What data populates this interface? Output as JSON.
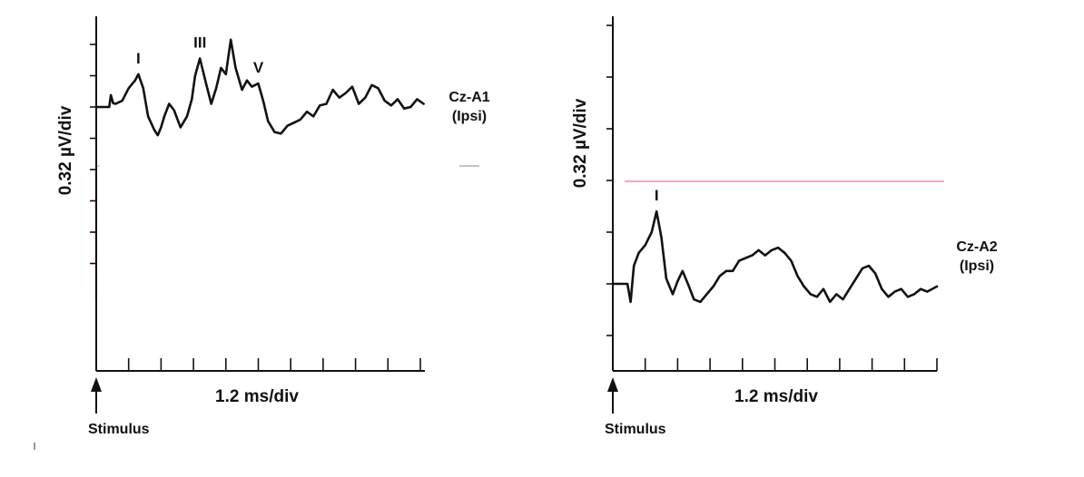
{
  "chart_data": [
    {
      "type": "line",
      "title": "",
      "xlabel": "1.2 ms/div",
      "ylabel": "0.32 µV/div",
      "stimulus_label": "Stimulus",
      "channel_label": "Cz-A1",
      "channel_sublabel": "(Ipsi)",
      "x_unit": "div (1.2 ms/div)",
      "y_unit": "div (0.32 µV/div)",
      "xlim": [
        0,
        10
      ],
      "ylim": [
        -5,
        7
      ],
      "grid": false,
      "peaks": [
        {
          "label": "I",
          "x": 1.3,
          "y": 1.05
        },
        {
          "label": "III",
          "x": 3.2,
          "y": 1.55
        },
        {
          "label": "V",
          "x": 5.0,
          "y": 0.75
        }
      ],
      "series": [
        {
          "name": "",
          "x": [
            0,
            0.4,
            0.45,
            0.52,
            0.6,
            0.8,
            1.0,
            1.2,
            1.3,
            1.45,
            1.6,
            1.8,
            1.9,
            2.0,
            2.1,
            2.25,
            2.4,
            2.6,
            2.8,
            2.95,
            3.05,
            3.2,
            3.4,
            3.55,
            3.7,
            3.85,
            4.0,
            4.15,
            4.3,
            4.5,
            4.65,
            4.8,
            5.0,
            5.15,
            5.3,
            5.5,
            5.7,
            5.9,
            6.1,
            6.3,
            6.5,
            6.7,
            6.9,
            7.1,
            7.3,
            7.5,
            7.7,
            7.9,
            8.1,
            8.3,
            8.5,
            8.7,
            8.9,
            9.1,
            9.3,
            9.5,
            9.7,
            9.9,
            10.1
          ],
          "y": [
            0,
            0,
            0.38,
            0.12,
            0.1,
            0.2,
            0.6,
            0.85,
            1.05,
            0.6,
            -0.3,
            -0.75,
            -0.9,
            -0.65,
            -0.3,
            0.1,
            -0.1,
            -0.65,
            -0.3,
            0.25,
            1.0,
            1.55,
            0.7,
            0.1,
            0.6,
            1.25,
            1.05,
            2.15,
            1.25,
            0.55,
            0.85,
            0.65,
            0.75,
            0.2,
            -0.45,
            -0.8,
            -0.85,
            -0.6,
            -0.5,
            -0.4,
            -0.15,
            -0.3,
            0.05,
            0.1,
            0.55,
            0.3,
            0.45,
            0.65,
            0.1,
            0.3,
            0.7,
            0.6,
            0.2,
            0.05,
            0.25,
            -0.05,
            0.0,
            0.25,
            0.1
          ]
        }
      ]
    },
    {
      "type": "line",
      "title": "",
      "xlabel": "1.2 ms/div",
      "ylabel": "0.32 µV/div",
      "stimulus_label": "Stimulus",
      "channel_label": "Cz-A2",
      "channel_sublabel": "(Ipsi)",
      "x_unit": "div (1.2 ms/div)",
      "y_unit": "div (0.32 µV/div)",
      "xlim": [
        0,
        10
      ],
      "ylim": [
        -1.7,
        5.2
      ],
      "grid": false,
      "peaks": [
        {
          "label": "I",
          "x": 1.35,
          "y": 1.4
        }
      ],
      "series": [
        {
          "name": "",
          "x": [
            0,
            0.45,
            0.55,
            0.65,
            0.8,
            1.0,
            1.2,
            1.35,
            1.5,
            1.65,
            1.85,
            2.0,
            2.15,
            2.35,
            2.5,
            2.7,
            2.9,
            3.1,
            3.3,
            3.5,
            3.7,
            3.9,
            4.1,
            4.3,
            4.5,
            4.7,
            4.9,
            5.1,
            5.3,
            5.5,
            5.7,
            5.9,
            6.1,
            6.3,
            6.5,
            6.7,
            6.9,
            7.1,
            7.3,
            7.5,
            7.7,
            7.9,
            8.1,
            8.3,
            8.5,
            8.7,
            8.9,
            9.1,
            9.3,
            9.5,
            9.7,
            10.0
          ],
          "y": [
            0,
            0,
            -0.35,
            0.35,
            0.6,
            0.75,
            1.0,
            1.4,
            0.9,
            0.1,
            -0.2,
            0.05,
            0.25,
            -0.05,
            -0.3,
            -0.35,
            -0.2,
            -0.05,
            0.15,
            0.25,
            0.25,
            0.45,
            0.5,
            0.55,
            0.65,
            0.55,
            0.65,
            0.7,
            0.6,
            0.45,
            0.15,
            -0.05,
            -0.2,
            -0.25,
            -0.1,
            -0.35,
            -0.2,
            -0.3,
            -0.1,
            0.1,
            0.3,
            0.35,
            0.2,
            -0.1,
            -0.25,
            -0.15,
            -0.1,
            -0.25,
            -0.2,
            -0.1,
            -0.15,
            -0.05
          ]
        }
      ]
    }
  ]
}
